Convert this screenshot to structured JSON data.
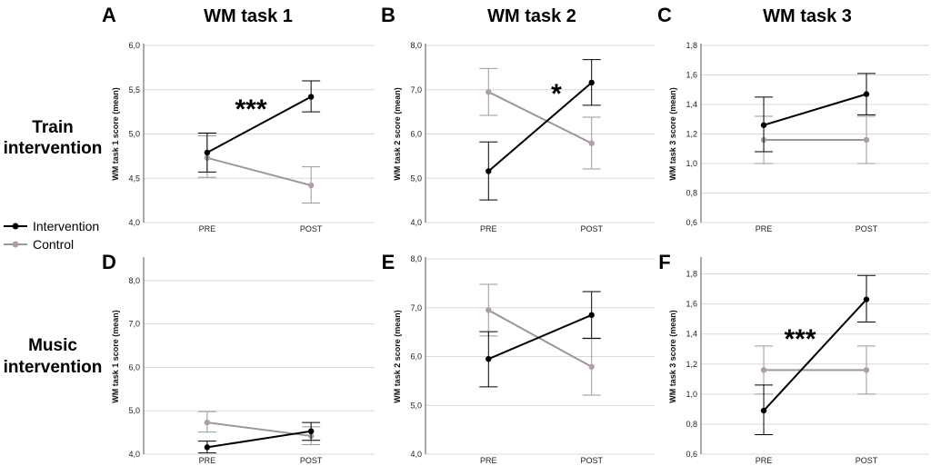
{
  "figure": {
    "column_titles": [
      "WM task 1",
      "WM task 2",
      "WM task 3"
    ],
    "row_labels": [
      {
        "line1": "Train",
        "line2": "intervention"
      },
      {
        "line1": "Music",
        "line2": "intervention"
      }
    ],
    "legend": [
      {
        "label": "Intervention",
        "color": "#000000"
      },
      {
        "label": "Control",
        "color": "#999999"
      }
    ],
    "colors": {
      "intervention": "#000000",
      "control_line": "#999999",
      "control_marker": "#b39ca6",
      "grid": "#d9d9d9"
    }
  },
  "chart_data": [
    {
      "panel": "A",
      "type": "line",
      "title": "WM task 1",
      "ylabel": "WM task 1 score (mean)",
      "ylim": [
        4.0,
        6.0
      ],
      "yticks": [
        "4,0",
        "4,5",
        "5,0",
        "5,5",
        "6,0"
      ],
      "ytick_values": [
        4.0,
        4.5,
        5.0,
        5.5,
        6.0
      ],
      "categories": [
        "PRE",
        "POST"
      ],
      "series": [
        {
          "name": "Intervention",
          "values": [
            4.79,
            5.42
          ],
          "lower": [
            4.57,
            5.25
          ],
          "upper": [
            5.01,
            5.6
          ]
        },
        {
          "name": "Control",
          "values": [
            4.73,
            4.42
          ],
          "lower": [
            4.51,
            4.22
          ],
          "upper": [
            4.98,
            4.63
          ]
        }
      ],
      "annotation": "***"
    },
    {
      "panel": "B",
      "type": "line",
      "title": "WM task 2",
      "ylabel": "WM task 2 score (mean)",
      "ylim": [
        4.0,
        8.0
      ],
      "yticks": [
        "4,0",
        "5,0",
        "6,0",
        "7,0",
        "8,0"
      ],
      "ytick_values": [
        4.0,
        5.0,
        6.0,
        7.0,
        8.0
      ],
      "categories": [
        "PRE",
        "POST"
      ],
      "series": [
        {
          "name": "Intervention",
          "values": [
            5.16,
            7.16
          ],
          "lower": [
            4.51,
            6.65
          ],
          "upper": [
            5.82,
            7.68
          ]
        },
        {
          "name": "Control",
          "values": [
            6.95,
            5.79
          ],
          "lower": [
            6.42,
            5.21
          ],
          "upper": [
            7.48,
            6.38
          ]
        }
      ],
      "annotation": "*"
    },
    {
      "panel": "C",
      "type": "line",
      "title": "WM task 3",
      "ylabel": "WM task 3 score (mean)",
      "ylim": [
        0.6,
        1.8
      ],
      "yticks": [
        "0,6",
        "0,8",
        "1,0",
        "1,2",
        "1,4",
        "1,6",
        "1,8"
      ],
      "ytick_values": [
        0.6,
        0.8,
        1.0,
        1.2,
        1.4,
        1.6,
        1.8
      ],
      "categories": [
        "PRE",
        "POST"
      ],
      "series": [
        {
          "name": "Intervention",
          "values": [
            1.26,
            1.47
          ],
          "lower": [
            1.08,
            1.33
          ],
          "upper": [
            1.45,
            1.61
          ]
        },
        {
          "name": "Control",
          "values": [
            1.16,
            1.16
          ],
          "lower": [
            1.0,
            1.0
          ],
          "upper": [
            1.32,
            1.32
          ]
        }
      ],
      "annotation": ""
    },
    {
      "panel": "D",
      "type": "line",
      "title": "",
      "ylabel": "WM task 1 score (mean)",
      "ylim": [
        4.0,
        8.5
      ],
      "yticks": [
        "4,0",
        "5,0",
        "6,0",
        "7,0",
        "8,0"
      ],
      "ytick_values": [
        4.0,
        5.0,
        6.0,
        7.0,
        8.0
      ],
      "categories": [
        "PRE",
        "POST"
      ],
      "series": [
        {
          "name": "Intervention",
          "values": [
            4.16,
            4.53
          ],
          "lower": [
            4.03,
            4.32
          ],
          "upper": [
            4.3,
            4.73
          ]
        },
        {
          "name": "Control",
          "values": [
            4.73,
            4.42
          ],
          "lower": [
            4.51,
            4.22
          ],
          "upper": [
            4.98,
            4.63
          ]
        }
      ],
      "annotation": ""
    },
    {
      "panel": "E",
      "type": "line",
      "title": "",
      "ylabel": "WM task 2 score (mean)",
      "ylim": [
        4.0,
        8.0
      ],
      "yticks": [
        "4,0",
        "5,0",
        "6,0",
        "7,0",
        "8,0"
      ],
      "ytick_values": [
        4.0,
        5.0,
        6.0,
        7.0,
        8.0
      ],
      "categories": [
        "PRE",
        "POST"
      ],
      "series": [
        {
          "name": "Intervention",
          "values": [
            5.95,
            6.85
          ],
          "lower": [
            5.38,
            6.37
          ],
          "upper": [
            6.51,
            7.33
          ]
        },
        {
          "name": "Control",
          "values": [
            6.95,
            5.79
          ],
          "lower": [
            6.42,
            5.21
          ],
          "upper": [
            7.48,
            6.38
          ]
        }
      ],
      "annotation": ""
    },
    {
      "panel": "F",
      "type": "line",
      "title": "",
      "ylabel": "WM task 3 score (mean)",
      "ylim": [
        0.6,
        1.9
      ],
      "yticks": [
        "0,6",
        "0,8",
        "1,0",
        "1,2",
        "1,4",
        "1,6",
        "1,8"
      ],
      "ytick_values": [
        0.6,
        0.8,
        1.0,
        1.2,
        1.4,
        1.6,
        1.8
      ],
      "categories": [
        "PRE",
        "POST"
      ],
      "series": [
        {
          "name": "Intervention",
          "values": [
            0.89,
            1.63
          ],
          "lower": [
            0.73,
            1.48
          ],
          "upper": [
            1.06,
            1.79
          ]
        },
        {
          "name": "Control",
          "values": [
            1.16,
            1.16
          ],
          "lower": [
            1.0,
            1.0
          ],
          "upper": [
            1.32,
            1.32
          ]
        }
      ],
      "annotation": "***"
    }
  ]
}
